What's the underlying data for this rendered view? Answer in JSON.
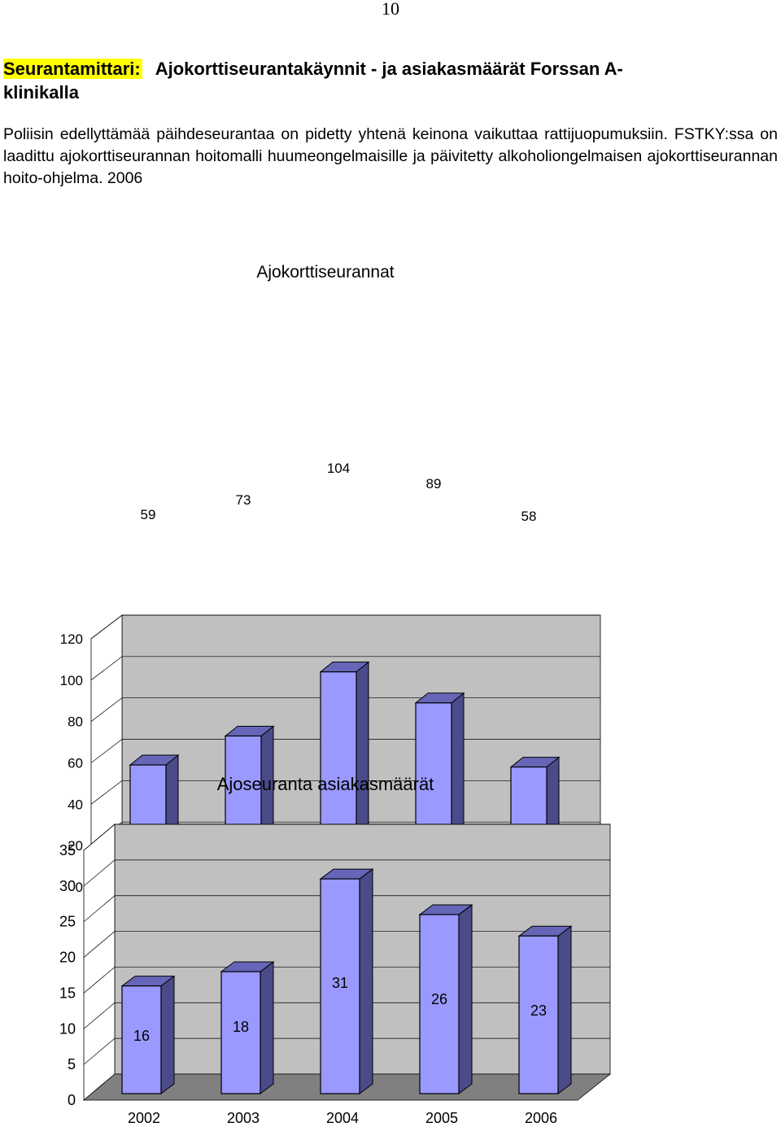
{
  "page": {
    "number": "10"
  },
  "heading": {
    "tag": "Seurantamittari:",
    "text_line1": "Ajokorttiseurantakäynnit - ja asiakasmäärät Forssan A-",
    "text_line2": "klinikalla"
  },
  "intro": {
    "text": "Poliisin edellyttämää päihdeseurantaa on pidetty yhtenä keinona vaikuttaa rattijuopumuksiin. FSTKY:ssa on laadittu ajokorttiseurannan hoitomalli huumeongelmaisille ja päivitetty alkoholiongelmaisen ajokorttiseurannan hoito-ohjelma. 2006"
  },
  "colors": {
    "bar_front": "#9999ff",
    "bar_side": "#4b4b8a",
    "bar_top": "#6666b8",
    "wall": "#c0c0c0",
    "floor": "#808080"
  },
  "chart_data": [
    {
      "type": "bar",
      "title": "Ajokorttiseurannat",
      "categories": [
        "2002",
        "2003",
        "2004",
        "2005",
        "2006"
      ],
      "values": [
        59,
        73,
        104,
        89,
        58
      ],
      "data_labels": [
        "59",
        "73",
        "104",
        "89",
        "58"
      ],
      "ylim": [
        0,
        120
      ],
      "yticks": [
        "0",
        "20",
        "40",
        "60",
        "80",
        "100",
        "120"
      ],
      "xlabel": "",
      "ylabel": "",
      "grid": true,
      "legend": "none",
      "style": "3d"
    },
    {
      "type": "bar",
      "title": "Ajoseuranta asiakasmäärät",
      "categories": [
        "2002",
        "2003",
        "2004",
        "2005",
        "2006"
      ],
      "values": [
        16,
        18,
        31,
        26,
        23
      ],
      "data_labels": [
        "16",
        "18",
        "31",
        "26",
        "23"
      ],
      "ylim": [
        0,
        35
      ],
      "yticks": [
        "0",
        "5",
        "10",
        "15",
        "20",
        "25",
        "30",
        "35"
      ],
      "xlabel": "",
      "ylabel": "",
      "grid": true,
      "legend": "none",
      "style": "3d"
    }
  ]
}
